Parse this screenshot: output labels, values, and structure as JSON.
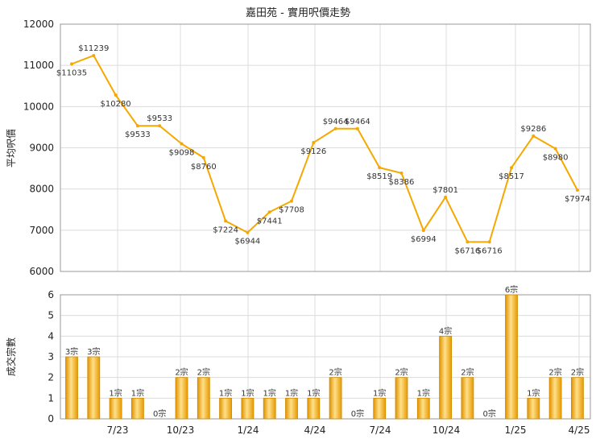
{
  "chart_data": [
    {
      "type": "line",
      "title": "嘉田苑 - 實用呎價走勢",
      "ylabel": "平均呎價",
      "ylim": [
        6000,
        12000
      ],
      "yticks": [
        6000,
        7000,
        8000,
        9000,
        10000,
        11000,
        12000
      ],
      "grid": true,
      "xticks": [
        "7/23",
        "10/23",
        "1/24",
        "4/24",
        "7/24",
        "10/24",
        "1/25",
        "4/25"
      ],
      "series": [
        {
          "color": "#F5A800",
          "values": [
            11035,
            11239,
            10280,
            9533,
            9533,
            9098,
            8760,
            7224,
            6944,
            7441,
            7708,
            9126,
            9464,
            9464,
            8519,
            8386,
            6994,
            7801,
            6716,
            6716,
            8517,
            9286,
            8980,
            7974
          ],
          "data_labels": [
            "$11035",
            "$11239",
            "$10280",
            "$9533",
            "$9533",
            "$9098",
            "$8760",
            "$7224",
            "$6944",
            "$7441",
            "$7708",
            "$9126",
            "$9464",
            "$9464",
            "$8519",
            "$8386",
            "$6994",
            "$7801",
            "$6716",
            "$6716",
            "$8517",
            "$9286",
            "$8980",
            "$7974"
          ]
        }
      ]
    },
    {
      "type": "bar",
      "ylabel": "成交宗數",
      "ylim": [
        0,
        6
      ],
      "yticks": [
        0,
        1,
        2,
        3,
        4,
        5,
        6
      ],
      "grid": true,
      "xticks": [
        "7/23",
        "10/23",
        "1/24",
        "4/24",
        "7/24",
        "10/24",
        "1/25",
        "4/25"
      ],
      "series": [
        {
          "color": "#F5A800",
          "values": [
            3,
            3,
            1,
            1,
            0,
            2,
            2,
            1,
            1,
            1,
            1,
            1,
            2,
            0,
            1,
            2,
            1,
            4,
            2,
            0,
            6,
            1,
            2,
            2
          ],
          "data_labels": [
            "3宗",
            "3宗",
            "1宗",
            "1宗",
            "0宗",
            "2宗",
            "2宗",
            "1宗",
            "1宗",
            "1宗",
            "1宗",
            "1宗",
            "2宗",
            "0宗",
            "1宗",
            "2宗",
            "1宗",
            "4宗",
            "2宗",
            "0宗",
            "6宗",
            "1宗",
            "2宗",
            "2宗"
          ]
        }
      ]
    }
  ]
}
